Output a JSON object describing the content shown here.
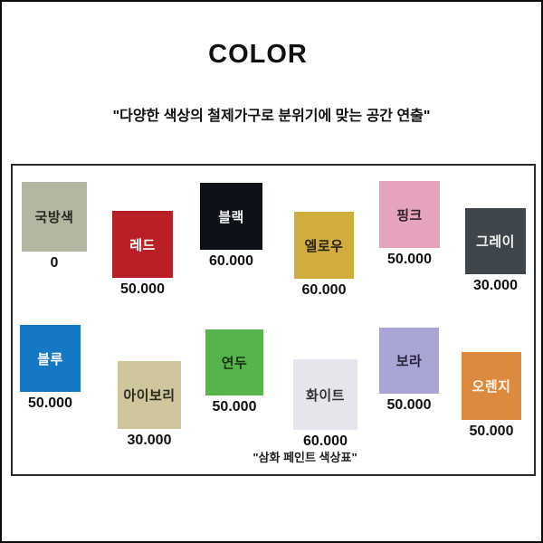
{
  "page": {
    "title": "COLOR",
    "subtitle": "\"다양한 색상의 철제가구로 분위기에 맞는 공간 연출\"",
    "caption": "\"삼화 페인트 색상표\""
  },
  "swatches": [
    {
      "name": "국방색",
      "price": "0",
      "color": "#b2b7a2",
      "text_color": "#26281f"
    },
    {
      "name": "레드",
      "price": "50.000",
      "color": "#b92025",
      "text_color": "#ffffff"
    },
    {
      "name": "블랙",
      "price": "60.000",
      "color": "#0e1117",
      "text_color": "#f2f2f2"
    },
    {
      "name": "엘로우",
      "price": "60.000",
      "color": "#d0ad3d",
      "text_color": "#2b2413"
    },
    {
      "name": "핑크",
      "price": "50.000",
      "color": "#e6a3bd",
      "text_color": "#2e2228"
    },
    {
      "name": "그레이",
      "price": "30.000",
      "color": "#3f464b",
      "text_color": "#f2f2f2"
    },
    {
      "name": "블루",
      "price": "50.000",
      "color": "#1478c5",
      "text_color": "#ffffff"
    },
    {
      "name": "아이보리",
      "price": "30.000",
      "color": "#cfc69d",
      "text_color": "#2b2a1d"
    },
    {
      "name": "연두",
      "price": "50.000",
      "color": "#55b44c",
      "text_color": "#17330f"
    },
    {
      "name": "화이트",
      "price": "60.000",
      "color": "#e6e5eb",
      "text_color": "#33323a"
    },
    {
      "name": "보라",
      "price": "50.000",
      "color": "#a9a5d5",
      "text_color": "#26243a"
    },
    {
      "name": "오렌지",
      "price": "50.000",
      "color": "#dd8a41",
      "text_color": "#fdf6ec"
    }
  ]
}
